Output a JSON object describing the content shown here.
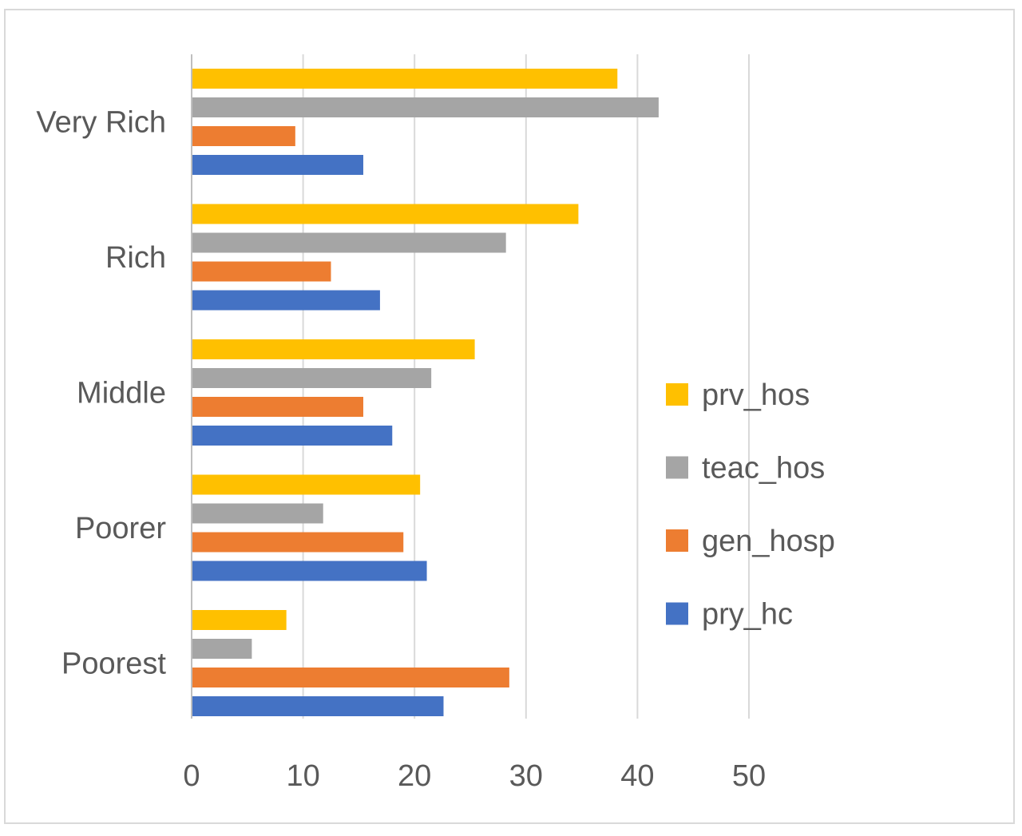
{
  "chart_data": {
    "type": "bar",
    "orientation": "horizontal",
    "title": "",
    "xlabel": "",
    "ylabel": "",
    "categories": [
      "Very Rich",
      "Rich",
      "Middle",
      "Poorer",
      "Poorest"
    ],
    "series": [
      {
        "name": "prv_hos",
        "color": "#FFC000",
        "values": [
          38.2,
          34.7,
          25.4,
          20.5,
          8.5
        ]
      },
      {
        "name": "teac_hos",
        "color": "#A5A5A5",
        "values": [
          41.9,
          28.2,
          21.5,
          11.8,
          5.4
        ]
      },
      {
        "name": "gen_hosp",
        "color": "#ED7D31",
        "values": [
          9.3,
          12.5,
          15.4,
          19.0,
          28.5
        ]
      },
      {
        "name": "pry_hc",
        "color": "#4472C4",
        "values": [
          15.4,
          16.9,
          18.0,
          21.1,
          22.6
        ]
      }
    ],
    "xlim": [
      0,
      50
    ],
    "x_ticks": [
      "0",
      "10",
      "20",
      "30",
      "40",
      "50"
    ],
    "gridlines": true,
    "legend_position": "right",
    "legend_order": [
      "prv_hos",
      "teac_hos",
      "gen_hosp",
      "pry_hc"
    ]
  }
}
